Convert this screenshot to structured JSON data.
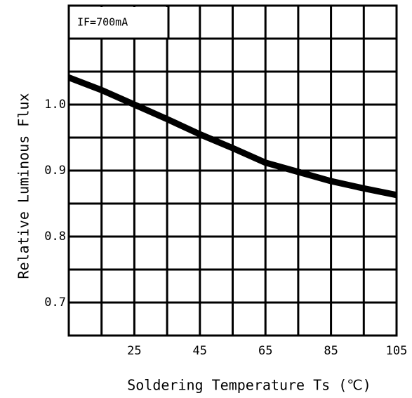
{
  "chart_data": {
    "type": "line",
    "x_label": "Soldering Temperature Ts (℃)",
    "y_label": "Relative Luminous Flux",
    "annotation": "IF=700mA",
    "x": [
      5,
      15,
      25,
      35,
      45,
      55,
      65,
      75,
      85,
      95,
      105
    ],
    "series": [
      {
        "color": "#000000",
        "values": [
          1.041,
          1.022,
          1.0,
          0.978,
          0.955,
          0.934,
          0.912,
          0.898,
          0.884,
          0.873,
          0.863
        ]
      }
    ],
    "xlim": [
      5,
      105
    ],
    "xticks": [
      25,
      45,
      65,
      85,
      105
    ],
    "ylim": [
      0.65,
      1.15
    ],
    "yticks": [
      {
        "value": 1,
        "label": "1.0"
      },
      0.9,
      0.8,
      0.7
    ],
    "xgrid": [
      15,
      25,
      35,
      45,
      55,
      65,
      75,
      85,
      95
    ],
    "ygrid": [
      0.7,
      0.75,
      0.8,
      0.85,
      0.9,
      0.95,
      1.0,
      1.05,
      1.1
    ],
    "grid": true
  }
}
